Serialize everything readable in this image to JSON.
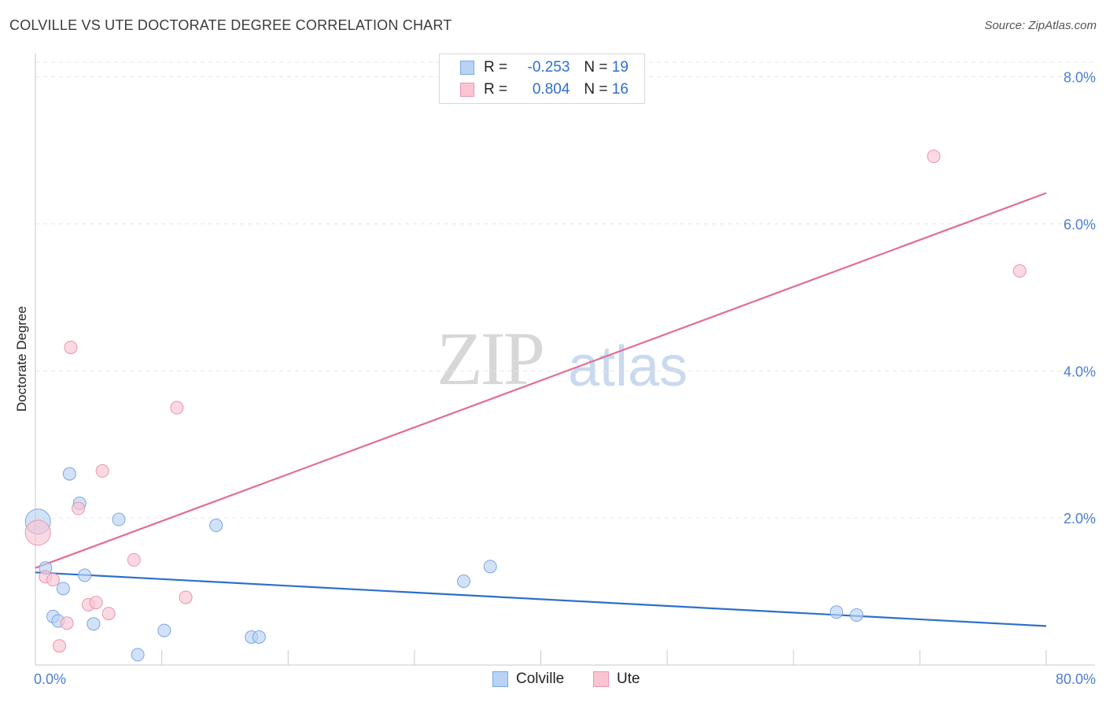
{
  "title": "COLVILLE VS UTE DOCTORATE DEGREE CORRELATION CHART",
  "source": "Source: ZipAtlas.com",
  "watermark": {
    "zip": "ZIP",
    "atlas": "atlas"
  },
  "legend": {
    "rows": [
      {
        "r_label": "R =",
        "r_value": "-0.253",
        "n_label": "N =",
        "n_value": "19"
      },
      {
        "r_label": "R =",
        "r_value": "0.804",
        "n_label": "N =",
        "n_value": "16"
      }
    ]
  },
  "bottom_legend": [
    "Colville",
    "Ute"
  ],
  "colors": {
    "colville_fill": "#b9d3f5",
    "colville_stroke": "#7ba6e3",
    "colville_line": "#2d6fcc",
    "ute_fill": "#f9c5d3",
    "ute_stroke": "#eb94ad",
    "ute_line": "#e26c94",
    "tick": "#4a7fd6",
    "grid": "#e6e6e6"
  },
  "chart_data": {
    "type": "scatter",
    "title": "COLVILLE VS UTE DOCTORATE DEGREE CORRELATION CHART",
    "xlabel": "",
    "ylabel": "Doctorate Degree",
    "xlim": [
      0,
      80
    ],
    "ylim": [
      0,
      8.2
    ],
    "x_tick_labels": [
      "0.0%",
      "80.0%"
    ],
    "y_ticks": [
      2,
      4,
      6,
      8
    ],
    "y_tick_labels": [
      "2.0%",
      "4.0%",
      "6.0%",
      "8.0%"
    ],
    "grid": true,
    "legend_position": "top-center",
    "series": [
      {
        "name": "Colville",
        "points": [
          [
            0.2,
            1.95
          ],
          [
            0.8,
            1.32
          ],
          [
            1.4,
            0.66
          ],
          [
            1.8,
            0.6
          ],
          [
            2.2,
            1.04
          ],
          [
            2.7,
            2.6
          ],
          [
            3.5,
            2.2
          ],
          [
            3.9,
            1.22
          ],
          [
            4.6,
            0.56
          ],
          [
            6.6,
            1.98
          ],
          [
            8.1,
            0.14
          ],
          [
            10.2,
            0.47
          ],
          [
            14.3,
            1.9
          ],
          [
            17.1,
            0.38
          ],
          [
            17.7,
            0.38
          ],
          [
            33.9,
            1.14
          ],
          [
            36.0,
            1.34
          ],
          [
            63.4,
            0.72
          ],
          [
            65.0,
            0.68
          ]
        ],
        "trend": {
          "x": [
            0,
            80
          ],
          "y": [
            1.26,
            0.53
          ]
        }
      },
      {
        "name": "Ute",
        "points": [
          [
            0.2,
            1.8
          ],
          [
            0.8,
            1.2
          ],
          [
            1.4,
            1.16
          ],
          [
            1.9,
            0.26
          ],
          [
            2.5,
            0.57
          ],
          [
            2.8,
            4.32
          ],
          [
            3.4,
            2.13
          ],
          [
            4.2,
            0.82
          ],
          [
            4.8,
            0.85
          ],
          [
            5.3,
            2.64
          ],
          [
            5.8,
            0.7
          ],
          [
            7.8,
            1.43
          ],
          [
            11.2,
            3.5
          ],
          [
            11.9,
            0.92
          ],
          [
            71.1,
            6.92
          ],
          [
            77.9,
            5.36
          ]
        ],
        "trend": {
          "x": [
            0,
            80
          ],
          "y": [
            1.32,
            6.42
          ]
        }
      }
    ]
  }
}
